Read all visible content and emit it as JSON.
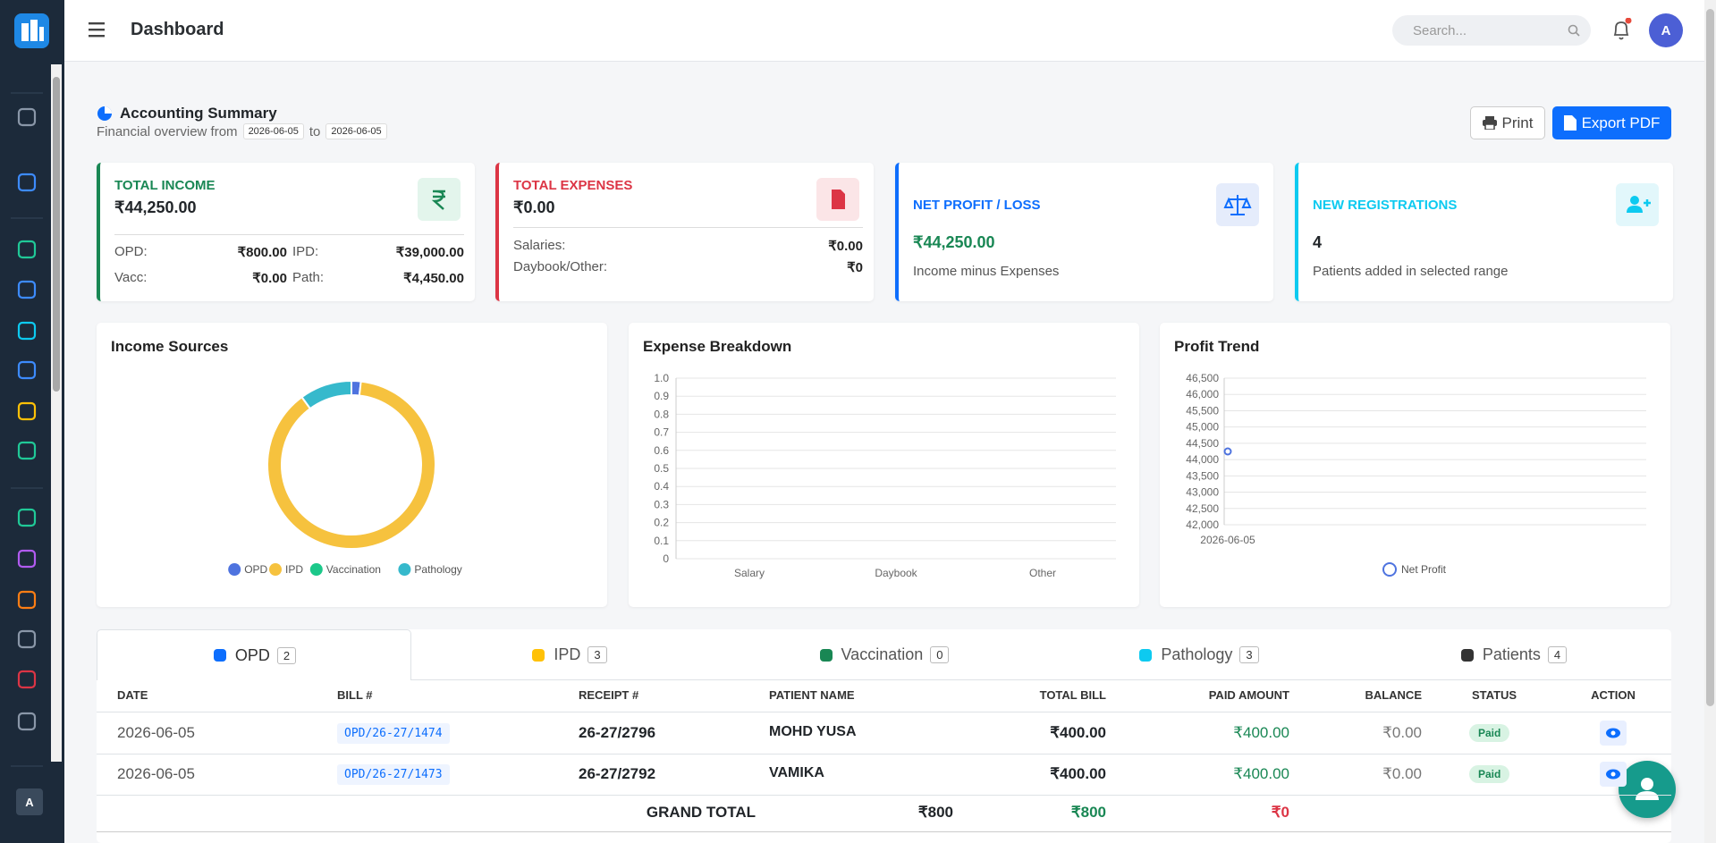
{
  "topbar": {
    "title": "Dashboard",
    "search_placeholder": "Search...",
    "avatar": "A"
  },
  "sidebar": {
    "user_initial": "A"
  },
  "summary": {
    "title": "Accounting Summary",
    "subtitle": "Financial overview from",
    "from": "2026-06-05",
    "to_label": "to",
    "to": "2026-06-05",
    "print": "Print",
    "export": "Export PDF"
  },
  "cards": [
    {
      "label": "TOTAL INCOME",
      "value": "₹44,250.00",
      "rows": [
        [
          "OPD:",
          "₹800.00",
          "IPD:",
          "₹39,000.00"
        ],
        [
          "Vacc:",
          "₹0.00",
          "Path:",
          "₹4,450.00"
        ]
      ]
    },
    {
      "label": "TOTAL EXPENSES",
      "value": "₹0.00",
      "rows": [
        [
          "Salaries:",
          "₹0.00"
        ],
        [
          "Daybook/Other:",
          "₹0"
        ]
      ]
    },
    {
      "label": "NET PROFIT / LOSS",
      "value": "₹44,250.00",
      "note": "Income minus Expenses"
    },
    {
      "label": "NEW REGISTRATIONS",
      "value": 4,
      "note": "Patients added in selected range"
    }
  ],
  "chart_data": [
    {
      "type": "pie",
      "title": "Income Sources",
      "categories": [
        "OPD",
        "IPD",
        "Vaccination",
        "Pathology"
      ],
      "values": [
        800,
        39000,
        0,
        4450
      ],
      "colors": [
        "#4e73df",
        "#f6c23e",
        "#1cc88a",
        "#36b9cc"
      ],
      "legend": "bottom"
    },
    {
      "type": "bar",
      "title": "Expense Breakdown",
      "categories": [
        "Salary",
        "Daybook",
        "Other"
      ],
      "values": [
        0,
        0,
        0
      ],
      "color": "#e74a3b",
      "ylim": [
        0,
        1
      ],
      "yticks": [
        0,
        0.1,
        0.2,
        0.3,
        0.4,
        0.5,
        0.6,
        0.7,
        0.8,
        0.9,
        {
          "value": 1,
          "label": "1.0"
        }
      ],
      "grid": true
    },
    {
      "type": "line",
      "title": "Profit Trend",
      "x": [
        "2026-06-05"
      ],
      "series": [
        {
          "name": "Net Profit",
          "color": "#4e73df",
          "values": [
            44250
          ]
        }
      ],
      "ylim": [
        42000,
        46500
      ],
      "yticks": [
        {
          "value": 42000,
          "label": "42,000"
        },
        {
          "value": 42500,
          "label": "42,500"
        },
        {
          "value": 43000,
          "label": "43,000"
        },
        {
          "value": 43500,
          "label": "43,500"
        },
        {
          "value": 44000,
          "label": "44,000"
        },
        {
          "value": 44500,
          "label": "44,500"
        },
        {
          "value": 45000,
          "label": "45,000"
        },
        {
          "value": 45500,
          "label": "45,500"
        },
        {
          "value": 46000,
          "label": "46,000"
        },
        {
          "value": 46500,
          "label": "46,500"
        }
      ],
      "grid": true,
      "legend": "bottom"
    }
  ],
  "tabs": [
    {
      "label": "OPD",
      "count": 2
    },
    {
      "label": "IPD",
      "count": 3
    },
    {
      "label": "Vaccination",
      "count": 0
    },
    {
      "label": "Pathology",
      "count": 3
    },
    {
      "label": "Patients",
      "count": 4
    }
  ],
  "table": {
    "headers": [
      "DATE",
      "BILL #",
      "RECEIPT #",
      "PATIENT NAME",
      "TOTAL BILL",
      "PAID AMOUNT",
      "BALANCE",
      "STATUS",
      "ACTION"
    ],
    "rows": [
      [
        "2026-06-05",
        "OPD/26-27/1474",
        "26-27/2796",
        "MOHD YUSA",
        "₹400.00",
        "₹400.00",
        "₹0.00",
        "Paid"
      ],
      [
        "2026-06-05",
        "OPD/26-27/1473",
        "26-27/2792",
        "VAMIKA",
        "₹400.00",
        "₹400.00",
        "₹0.00",
        "Paid"
      ]
    ],
    "grand_total": {
      "label": "GRAND TOTAL",
      "total": "₹800",
      "paid": "₹800",
      "balance": "₹0"
    }
  }
}
